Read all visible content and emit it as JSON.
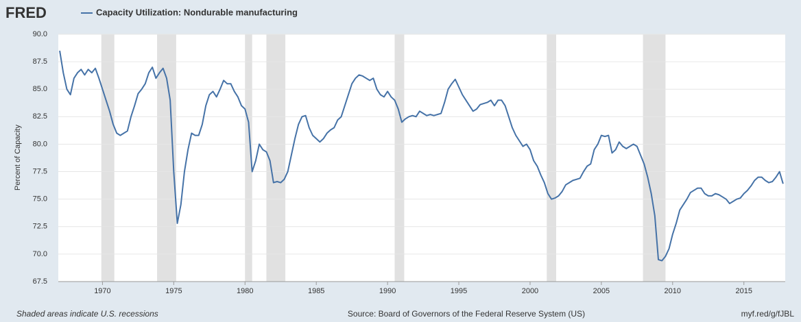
{
  "chart_data": {
    "type": "line",
    "logo": "FRED",
    "title": "Capacity Utilization: Nondurable manufacturing",
    "ylabel": "Percent of Capacity",
    "note": "Shaded areas indicate U.S. recessions",
    "source": "Source: Board of Governors of the Federal Reserve System (US)",
    "link": "myf.red/g/fJBL",
    "color": "#4572a7",
    "recession_color": "#e1e1e1",
    "grid": true,
    "xlim": [
      1966.9,
      2017.9
    ],
    "ylim": [
      67.5,
      90
    ],
    "xticks": [
      1970,
      1975,
      1980,
      1985,
      1990,
      1995,
      2000,
      2005,
      2010,
      2015
    ],
    "yticks": [
      {
        "value": 67.5,
        "label": "67.5"
      },
      {
        "value": 70,
        "label": "70.0"
      },
      {
        "value": 72.5,
        "label": "72.5"
      },
      {
        "value": 75,
        "label": "75.0"
      },
      {
        "value": 77.5,
        "label": "77.5"
      },
      {
        "value": 80,
        "label": "80.0"
      },
      {
        "value": 82.5,
        "label": "82.5"
      },
      {
        "value": 85,
        "label": "85.0"
      },
      {
        "value": 87.5,
        "label": "87.5"
      },
      {
        "value": 90,
        "label": "90.0"
      }
    ],
    "recessions": [
      [
        1969.92,
        1970.83
      ],
      [
        1973.83,
        1975.17
      ],
      [
        1980.0,
        1980.5
      ],
      [
        1981.5,
        1982.83
      ],
      [
        1990.5,
        1991.17
      ],
      [
        2001.17,
        2001.83
      ],
      [
        2007.92,
        2009.5
      ]
    ],
    "x": [
      1967,
      1967.25,
      1967.5,
      1967.75,
      1968,
      1968.25,
      1968.5,
      1968.75,
      1969,
      1969.25,
      1969.5,
      1969.75,
      1970,
      1970.25,
      1970.5,
      1970.75,
      1971,
      1971.25,
      1971.5,
      1971.75,
      1972,
      1972.25,
      1972.5,
      1972.75,
      1973,
      1973.25,
      1973.5,
      1973.75,
      1974,
      1974.25,
      1974.5,
      1974.75,
      1975,
      1975.25,
      1975.5,
      1975.75,
      1976,
      1976.25,
      1976.5,
      1976.75,
      1977,
      1977.25,
      1977.5,
      1977.75,
      1978,
      1978.25,
      1978.5,
      1978.75,
      1979,
      1979.25,
      1979.5,
      1979.75,
      1980,
      1980.25,
      1980.5,
      1980.75,
      1981,
      1981.25,
      1981.5,
      1981.75,
      1982,
      1982.25,
      1982.5,
      1982.75,
      1983,
      1983.25,
      1983.5,
      1983.75,
      1984,
      1984.25,
      1984.5,
      1984.75,
      1985,
      1985.25,
      1985.5,
      1985.75,
      1986,
      1986.25,
      1986.5,
      1986.75,
      1987,
      1987.25,
      1987.5,
      1987.75,
      1988,
      1988.25,
      1988.5,
      1988.75,
      1989,
      1989.25,
      1989.5,
      1989.75,
      1990,
      1990.25,
      1990.5,
      1990.75,
      1991,
      1991.25,
      1991.5,
      1991.75,
      1992,
      1992.25,
      1992.5,
      1992.75,
      1993,
      1993.25,
      1993.5,
      1993.75,
      1994,
      1994.25,
      1994.5,
      1994.75,
      1995,
      1995.25,
      1995.5,
      1995.75,
      1996,
      1996.25,
      1996.5,
      1996.75,
      1997,
      1997.25,
      1997.5,
      1997.75,
      1998,
      1998.25,
      1998.5,
      1998.75,
      1999,
      1999.25,
      1999.5,
      1999.75,
      2000,
      2000.25,
      2000.5,
      2000.75,
      2001,
      2001.25,
      2001.5,
      2001.75,
      2002,
      2002.25,
      2002.5,
      2002.75,
      2003,
      2003.25,
      2003.5,
      2003.75,
      2004,
      2004.25,
      2004.5,
      2004.75,
      2005,
      2005.25,
      2005.5,
      2005.75,
      2006,
      2006.25,
      2006.5,
      2006.75,
      2007,
      2007.25,
      2007.5,
      2007.75,
      2008,
      2008.25,
      2008.5,
      2008.75,
      2009,
      2009.25,
      2009.5,
      2009.75,
      2010,
      2010.25,
      2010.5,
      2010.75,
      2011,
      2011.25,
      2011.5,
      2011.75,
      2012,
      2012.25,
      2012.5,
      2012.75,
      2013,
      2013.25,
      2013.5,
      2013.75,
      2014,
      2014.25,
      2014.5,
      2014.75,
      2015,
      2015.25,
      2015.5,
      2015.75,
      2016,
      2016.25,
      2016.5,
      2016.75,
      2017,
      2017.25,
      2017.5,
      2017.75
    ],
    "values": [
      88.5,
      86.5,
      85.0,
      84.5,
      86.0,
      86.5,
      86.8,
      86.3,
      86.8,
      86.5,
      86.9,
      86.0,
      85.0,
      84.0,
      83.0,
      81.8,
      81.0,
      80.8,
      81.0,
      81.2,
      82.5,
      83.5,
      84.6,
      85.0,
      85.5,
      86.5,
      87.0,
      86.0,
      86.5,
      86.9,
      86.0,
      84.0,
      77.5,
      72.8,
      74.5,
      77.5,
      79.5,
      81.0,
      80.8,
      80.8,
      81.8,
      83.5,
      84.5,
      84.8,
      84.3,
      85.0,
      85.8,
      85.5,
      85.5,
      84.8,
      84.3,
      83.5,
      83.2,
      82.0,
      77.5,
      78.5,
      80.0,
      79.5,
      79.3,
      78.5,
      76.5,
      76.6,
      76.5,
      76.8,
      77.5,
      79.0,
      80.5,
      81.8,
      82.5,
      82.6,
      81.5,
      80.8,
      80.5,
      80.2,
      80.5,
      81.0,
      81.3,
      81.5,
      82.2,
      82.5,
      83.5,
      84.5,
      85.5,
      86.0,
      86.3,
      86.2,
      86.0,
      85.8,
      86.0,
      85.0,
      84.5,
      84.3,
      84.8,
      84.3,
      84.0,
      83.2,
      82.0,
      82.3,
      82.5,
      82.6,
      82.5,
      83.0,
      82.8,
      82.6,
      82.7,
      82.6,
      82.7,
      82.8,
      83.8,
      85.0,
      85.5,
      85.9,
      85.2,
      84.5,
      84.0,
      83.5,
      83.0,
      83.2,
      83.6,
      83.7,
      83.8,
      84.0,
      83.5,
      84.0,
      84.0,
      83.5,
      82.5,
      81.5,
      80.8,
      80.3,
      79.8,
      80.0,
      79.5,
      78.5,
      78.0,
      77.2,
      76.5,
      75.5,
      75.0,
      75.1,
      75.3,
      75.7,
      76.3,
      76.5,
      76.7,
      76.8,
      76.9,
      77.5,
      78.0,
      78.2,
      79.5,
      80.0,
      80.8,
      80.7,
      80.8,
      79.2,
      79.5,
      80.2,
      79.8,
      79.6,
      79.8,
      80.0,
      79.8,
      79.0,
      78.2,
      77.0,
      75.5,
      73.5,
      69.5,
      69.4,
      69.8,
      70.5,
      71.8,
      72.8,
      74.0,
      74.5,
      75.0,
      75.6,
      75.8,
      76.0,
      76.0,
      75.5,
      75.3,
      75.3,
      75.5,
      75.4,
      75.2,
      75.0,
      74.6,
      74.8,
      75.0,
      75.1,
      75.5,
      75.8,
      76.2,
      76.7,
      77.0,
      77.0,
      76.7,
      76.5,
      76.6,
      77.0,
      77.5,
      76.4
    ]
  }
}
